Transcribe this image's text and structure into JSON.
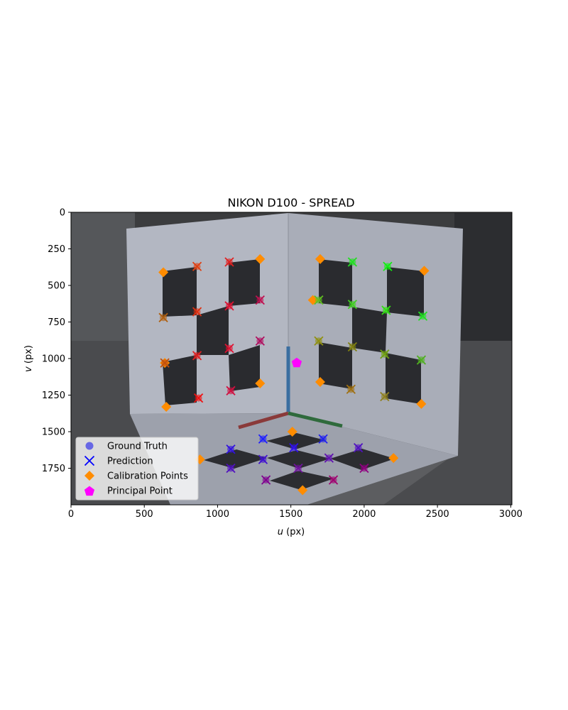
{
  "chart_data": {
    "type": "scatter",
    "title": "NIKON D100 - SPREAD",
    "xlabel_var": "u",
    "xlabel_unit": " (px)",
    "ylabel_var": "v",
    "ylabel_unit": " (px)",
    "xlim": [
      0,
      3008
    ],
    "ylim": [
      2000,
      0
    ],
    "y_inverted": true,
    "xticks": [
      0,
      500,
      1000,
      1500,
      2000,
      2500,
      3000
    ],
    "yticks": [
      0,
      250,
      500,
      750,
      1000,
      1250,
      1500,
      1750
    ],
    "grid": false,
    "background": "photo of calibration object: two perpendicular white panels with black squares and a black/white checkerboard floor",
    "legend": {
      "position": "lower-left",
      "entries": [
        {
          "label": "Ground Truth",
          "marker": "circle",
          "color": "#5a5ae6"
        },
        {
          "label": "Prediction",
          "marker": "x",
          "color": "#0000ff"
        },
        {
          "label": "Calibration Points",
          "marker": "diamond",
          "color": "#ff8c00"
        },
        {
          "label": "Principal Point",
          "marker": "pentagon",
          "color": "#ff00ff"
        }
      ]
    },
    "calibration_points": [
      [
        630,
        410
      ],
      [
        1290,
        320
      ],
      [
        1700,
        320
      ],
      [
        2410,
        400
      ],
      [
        640,
        1030
      ],
      [
        650,
        1330
      ],
      [
        1290,
        1170
      ],
      [
        1700,
        1160
      ],
      [
        2390,
        1310
      ],
      [
        880,
        1690
      ],
      [
        1510,
        1500
      ],
      [
        1580,
        1900
      ],
      [
        2200,
        1680
      ],
      [
        1650,
        600
      ]
    ],
    "principal_point": [
      1540,
      1030
    ],
    "predictions": [
      {
        "u": 860,
        "v": 370,
        "color": "#e04010"
      },
      {
        "u": 1080,
        "v": 340,
        "color": "#e02020"
      },
      {
        "u": 630,
        "v": 720,
        "color": "#b06010"
      },
      {
        "u": 860,
        "v": 680,
        "color": "#e03010"
      },
      {
        "u": 1080,
        "v": 640,
        "color": "#e01030"
      },
      {
        "u": 1290,
        "v": 600,
        "color": "#c01050"
      },
      {
        "u": 640,
        "v": 1030,
        "color": "#c05010"
      },
      {
        "u": 860,
        "v": 980,
        "color": "#e02020"
      },
      {
        "u": 1080,
        "v": 930,
        "color": "#e01030"
      },
      {
        "u": 1290,
        "v": 880,
        "color": "#b01060"
      },
      {
        "u": 870,
        "v": 1270,
        "color": "#f01010"
      },
      {
        "u": 1090,
        "v": 1220,
        "color": "#d01040"
      },
      {
        "u": 1920,
        "v": 340,
        "color": "#20e020"
      },
      {
        "u": 2160,
        "v": 370,
        "color": "#10f010"
      },
      {
        "u": 1690,
        "v": 600,
        "color": "#60c020"
      },
      {
        "u": 1920,
        "v": 630,
        "color": "#40d020"
      },
      {
        "u": 2150,
        "v": 670,
        "color": "#30e010"
      },
      {
        "u": 2400,
        "v": 710,
        "color": "#20e020"
      },
      {
        "u": 1690,
        "v": 880,
        "color": "#909010"
      },
      {
        "u": 1920,
        "v": 920,
        "color": "#808010"
      },
      {
        "u": 2140,
        "v": 970,
        "color": "#70a010"
      },
      {
        "u": 2390,
        "v": 1010,
        "color": "#50b020"
      },
      {
        "u": 1910,
        "v": 1210,
        "color": "#a07010"
      },
      {
        "u": 2140,
        "v": 1260,
        "color": "#908020"
      },
      {
        "u": 1310,
        "v": 1550,
        "color": "#2020ff"
      },
      {
        "u": 1720,
        "v": 1550,
        "color": "#2020f0"
      },
      {
        "u": 1090,
        "v": 1620,
        "color": "#3010e0"
      },
      {
        "u": 1520,
        "v": 1610,
        "color": "#3010f0"
      },
      {
        "u": 1960,
        "v": 1610,
        "color": "#5010c0"
      },
      {
        "u": 1310,
        "v": 1690,
        "color": "#4010d0"
      },
      {
        "u": 1760,
        "v": 1680,
        "color": "#6010b0"
      },
      {
        "u": 1090,
        "v": 1750,
        "color": "#5010c0"
      },
      {
        "u": 1550,
        "v": 1750,
        "color": "#7010a0"
      },
      {
        "u": 2000,
        "v": 1750,
        "color": "#900080"
      },
      {
        "u": 1330,
        "v": 1830,
        "color": "#800090"
      },
      {
        "u": 1790,
        "v": 1830,
        "color": "#a00070"
      }
    ]
  }
}
